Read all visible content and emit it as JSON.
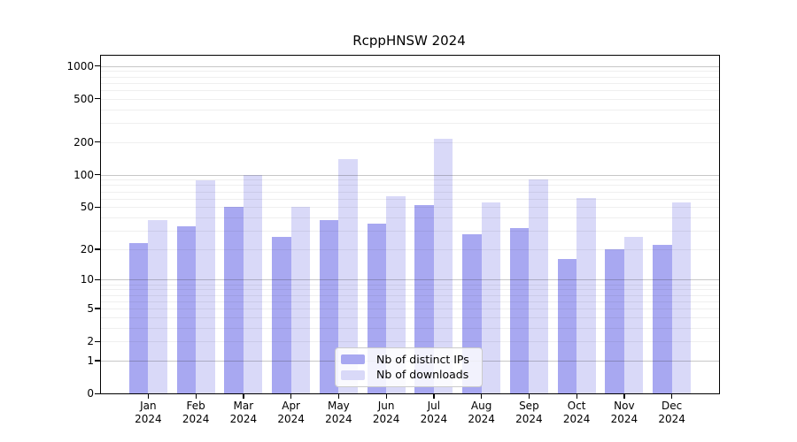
{
  "chart_data": {
    "type": "bar",
    "title": "RcppHNSW 2024",
    "categories": [
      "Jan",
      "Feb",
      "Mar",
      "Apr",
      "May",
      "Jun",
      "Jul",
      "Aug",
      "Sep",
      "Oct",
      "Nov",
      "Dec"
    ],
    "category_year": "2024",
    "series": [
      {
        "name": "Nb of distinct IPs",
        "color": "#a8a8f1",
        "values": [
          23,
          33,
          50,
          26,
          38,
          35,
          52,
          28,
          32,
          16,
          20,
          22
        ]
      },
      {
        "name": "Nb of downloads",
        "color": "#d9d9f8",
        "values": [
          38,
          88,
          100,
          50,
          140,
          63,
          213,
          55,
          90,
          61,
          26,
          55
        ]
      }
    ],
    "yscale": "log1p",
    "yticks": [
      0,
      1,
      2,
      5,
      10,
      20,
      50,
      100,
      200,
      500,
      1000
    ],
    "ylim": [
      0,
      1270
    ],
    "xlabel": "",
    "ylabel": "",
    "grid": "horizontal major at 1,10,100,1000; minor at 2-9 per decade",
    "legend_position": "lower center",
    "legend_labels": [
      "Nb of distinct IPs",
      "Nb of downloads"
    ],
    "colors": {
      "bar_dark": "#a8a8f1",
      "bar_light": "#d9d9f8",
      "axis": "#000000",
      "grid_major": "#c3c3c3",
      "grid_minor": "#ececec",
      "background": "#ffffff"
    }
  }
}
